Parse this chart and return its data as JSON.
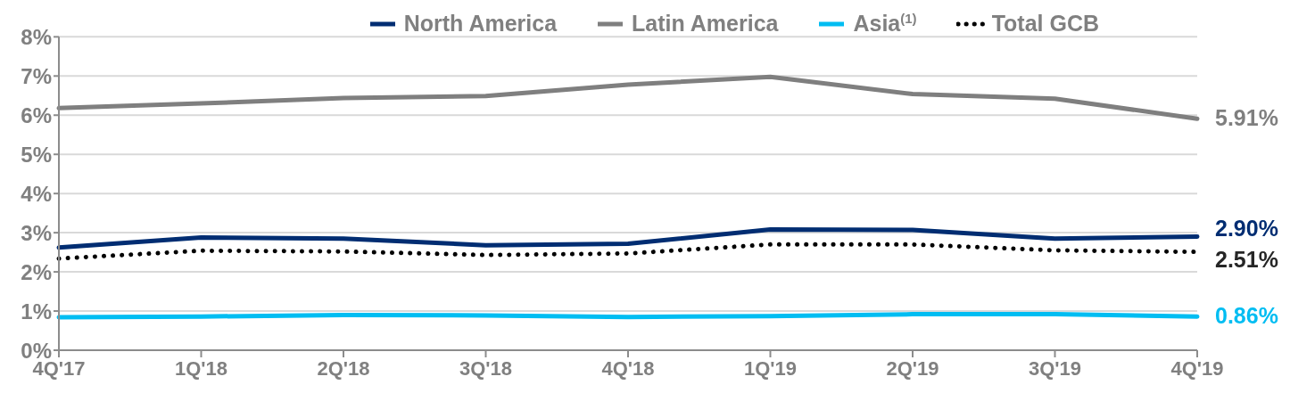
{
  "chart_data": {
    "type": "line",
    "categories": [
      "4Q'17",
      "1Q'18",
      "2Q'18",
      "3Q'18",
      "4Q'18",
      "1Q'19",
      "2Q'19",
      "3Q'19",
      "4Q'19"
    ],
    "series": [
      {
        "name": "North America",
        "color": "#002d72",
        "values": [
          2.62,
          2.88,
          2.85,
          2.68,
          2.72,
          3.08,
          3.07,
          2.85,
          2.9
        ],
        "value_labels": [
          null,
          null,
          null,
          null,
          null,
          null,
          null,
          null,
          "2.90%"
        ]
      },
      {
        "name": "Latin America",
        "color": "#7f7f7f",
        "values": [
          6.18,
          6.3,
          6.44,
          6.49,
          6.78,
          6.98,
          6.54,
          6.42,
          5.91
        ],
        "value_labels": [
          null,
          null,
          null,
          null,
          null,
          null,
          null,
          null,
          "5.91%"
        ]
      },
      {
        "name": "Asia$^{(1)}$",
        "color": "#00bdf2",
        "values": [
          0.84,
          0.86,
          0.9,
          0.89,
          0.85,
          0.87,
          0.92,
          0.92,
          0.86
        ],
        "value_labels": [
          null,
          null,
          null,
          null,
          null,
          null,
          null,
          null,
          "0.86%"
        ]
      },
      {
        "name": "Total GCB",
        "color": "#000000",
        "line_style": "dotted",
        "values": [
          2.34,
          2.54,
          2.52,
          2.43,
          2.47,
          2.7,
          2.7,
          2.55,
          2.51
        ],
        "value_labels": [
          null,
          null,
          null,
          null,
          null,
          null,
          null,
          null,
          "2.51%"
        ]
      }
    ],
    "ylim": [
      0,
      8
    ],
    "yticks": [
      {
        "value": 0,
        "label": "0%"
      },
      {
        "value": 1,
        "label": "1%"
      },
      {
        "value": 2,
        "label": "2%"
      },
      {
        "value": 3,
        "label": "3%"
      },
      {
        "value": 4,
        "label": "4%"
      },
      {
        "value": 5,
        "label": "5%"
      },
      {
        "value": 6,
        "label": "6%"
      },
      {
        "value": 7,
        "label": "7%"
      },
      {
        "value": 8,
        "label": "8%"
      }
    ],
    "grid": "y",
    "legend": "top",
    "marker": "none",
    "line_style": "solid"
  }
}
